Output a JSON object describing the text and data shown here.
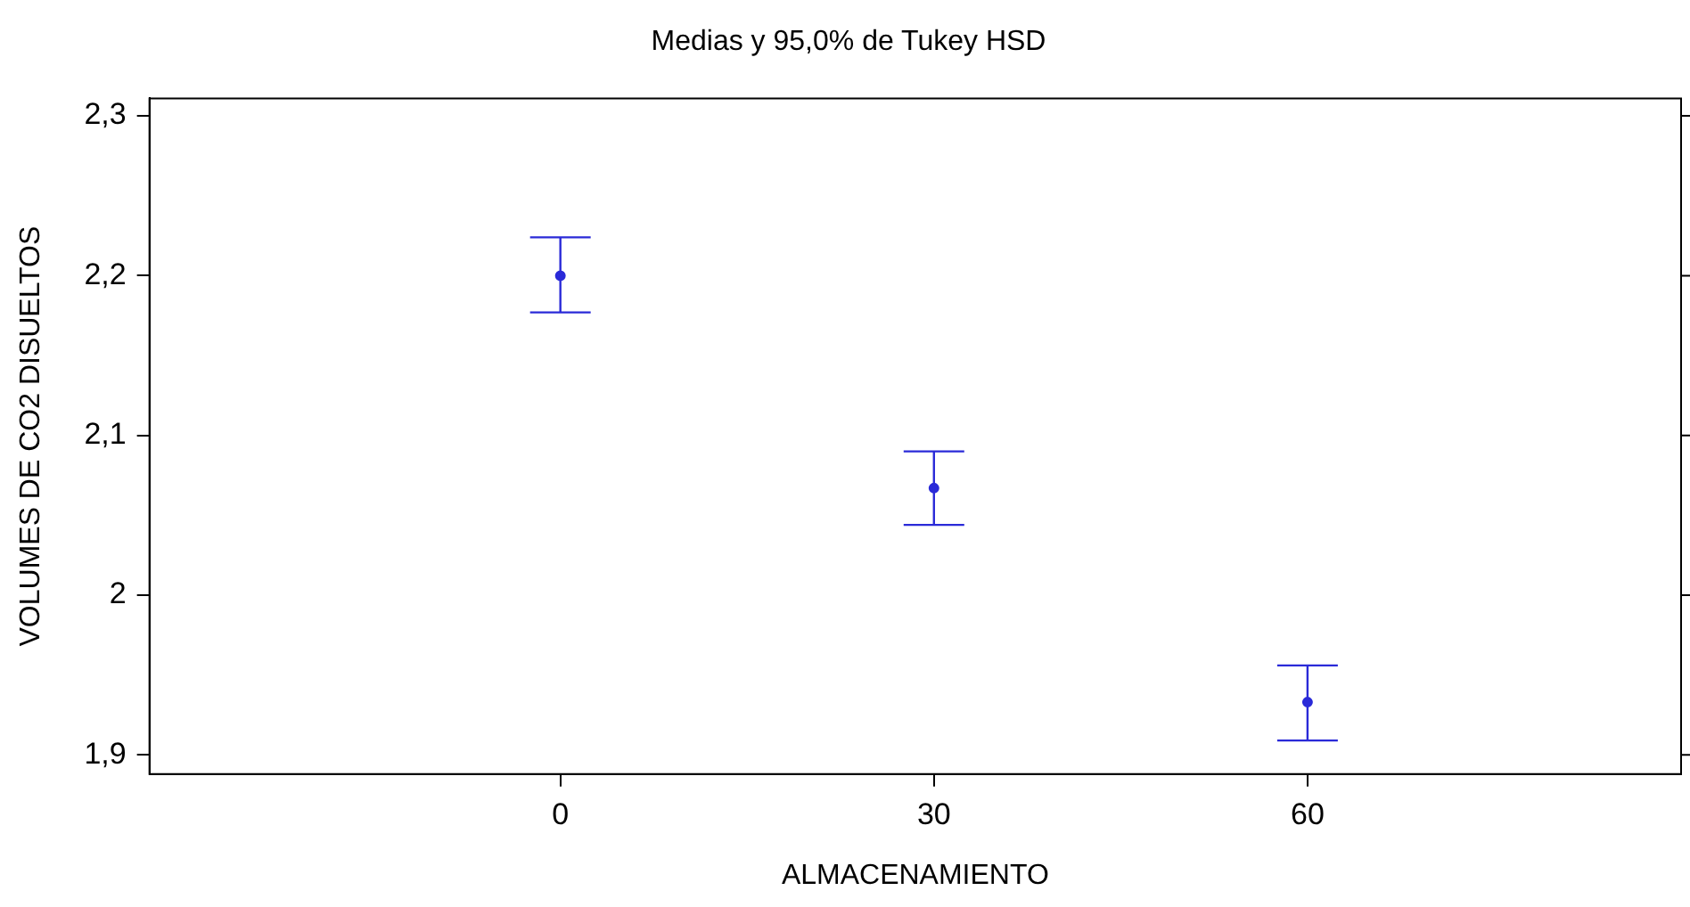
{
  "chart_data": {
    "type": "scatter",
    "title": "Medias y 95,0% de Tukey HSD",
    "xlabel": "ALMACENAMIENTO",
    "ylabel": "VOLUMES DE CO2 DISUELTOS",
    "x": [
      0,
      30,
      60
    ],
    "series": [
      {
        "color": "#2a2ad8",
        "values": [
          2.2,
          2.067,
          1.933
        ],
        "errors": [
          [
            2.177,
            2.224
          ],
          [
            2.044,
            2.09
          ],
          [
            1.909,
            1.956
          ]
        ]
      }
    ],
    "marker": "circle",
    "grid": false,
    "legend": false,
    "xlim": [
      -33,
      90
    ],
    "xticks": [
      0,
      30,
      60
    ],
    "ylim": [
      1.888,
      2.311
    ],
    "yticks": [
      {
        "value": 1.9,
        "label": "1,9"
      },
      2,
      {
        "value": 2.1,
        "label": "2,1"
      },
      {
        "value": 2.2,
        "label": "2,2"
      },
      {
        "value": 2.3,
        "label": "2,3"
      }
    ]
  }
}
